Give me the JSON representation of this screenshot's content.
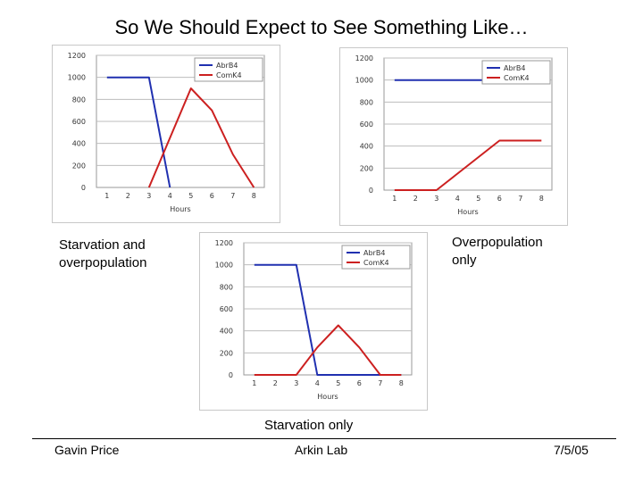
{
  "title": "So We Should Expect to See Something Like…",
  "captions": {
    "left": [
      "Starvation and",
      "overpopulation"
    ],
    "right": [
      "Overpopulation",
      "only"
    ],
    "bottom": "Starvation only"
  },
  "footer": {
    "left": "Gavin Price",
    "center": "Arkin Lab",
    "right": "7/5/05"
  },
  "colors": {
    "abrb4": "#2030b0",
    "comk4": "#cc2020"
  },
  "chart_data": [
    {
      "type": "line",
      "title": "",
      "xlabel": "Hours",
      "ylabel": "",
      "x": [
        1,
        2,
        3,
        4,
        5,
        6,
        7,
        8
      ],
      "ylim": [
        0,
        1200
      ],
      "yticks": [
        0,
        200,
        400,
        600,
        800,
        1000,
        1200
      ],
      "grid": true,
      "legend": "top-right",
      "series": [
        {
          "name": "AbrB4",
          "x": [
            1,
            2,
            3,
            4
          ],
          "values": [
            1000,
            1000,
            1000,
            0
          ]
        },
        {
          "name": "ComK4",
          "x": [
            3,
            4,
            5,
            6,
            7,
            8
          ],
          "values": [
            0,
            450,
            900,
            700,
            300,
            0
          ]
        }
      ]
    },
    {
      "type": "line",
      "title": "",
      "xlabel": "Hours",
      "ylabel": "",
      "x": [
        1,
        2,
        3,
        4,
        5,
        6,
        7,
        8
      ],
      "ylim": [
        0,
        1200
      ],
      "yticks": [
        0,
        200,
        400,
        600,
        800,
        1000,
        1200
      ],
      "grid": true,
      "legend": "top-right",
      "series": [
        {
          "name": "AbrB4",
          "x": [
            1,
            2,
            3,
            4,
            5,
            6,
            7,
            8
          ],
          "values": [
            1000,
            1000,
            1000,
            1000,
            1000,
            1000,
            1000,
            1000
          ]
        },
        {
          "name": "ComK4",
          "x": [
            1,
            2,
            3,
            4,
            5,
            6,
            7,
            8
          ],
          "values": [
            0,
            0,
            0,
            150,
            300,
            450,
            450,
            450
          ]
        }
      ]
    },
    {
      "type": "line",
      "title": "",
      "xlabel": "Hours",
      "ylabel": "",
      "x": [
        1,
        2,
        3,
        4,
        5,
        6,
        7,
        8
      ],
      "ylim": [
        0,
        1200
      ],
      "yticks": [
        0,
        200,
        400,
        600,
        800,
        1000,
        1200
      ],
      "grid": true,
      "legend": "top-right",
      "series": [
        {
          "name": "AbrB4",
          "x": [
            1,
            2,
            3,
            4,
            5,
            6,
            7,
            8
          ],
          "values": [
            1000,
            1000,
            1000,
            0,
            0,
            0,
            0,
            0
          ]
        },
        {
          "name": "ComK4",
          "x": [
            1,
            2,
            3,
            4,
            5,
            6,
            7,
            8
          ],
          "values": [
            0,
            0,
            0,
            250,
            450,
            250,
            0,
            0
          ]
        }
      ]
    }
  ]
}
